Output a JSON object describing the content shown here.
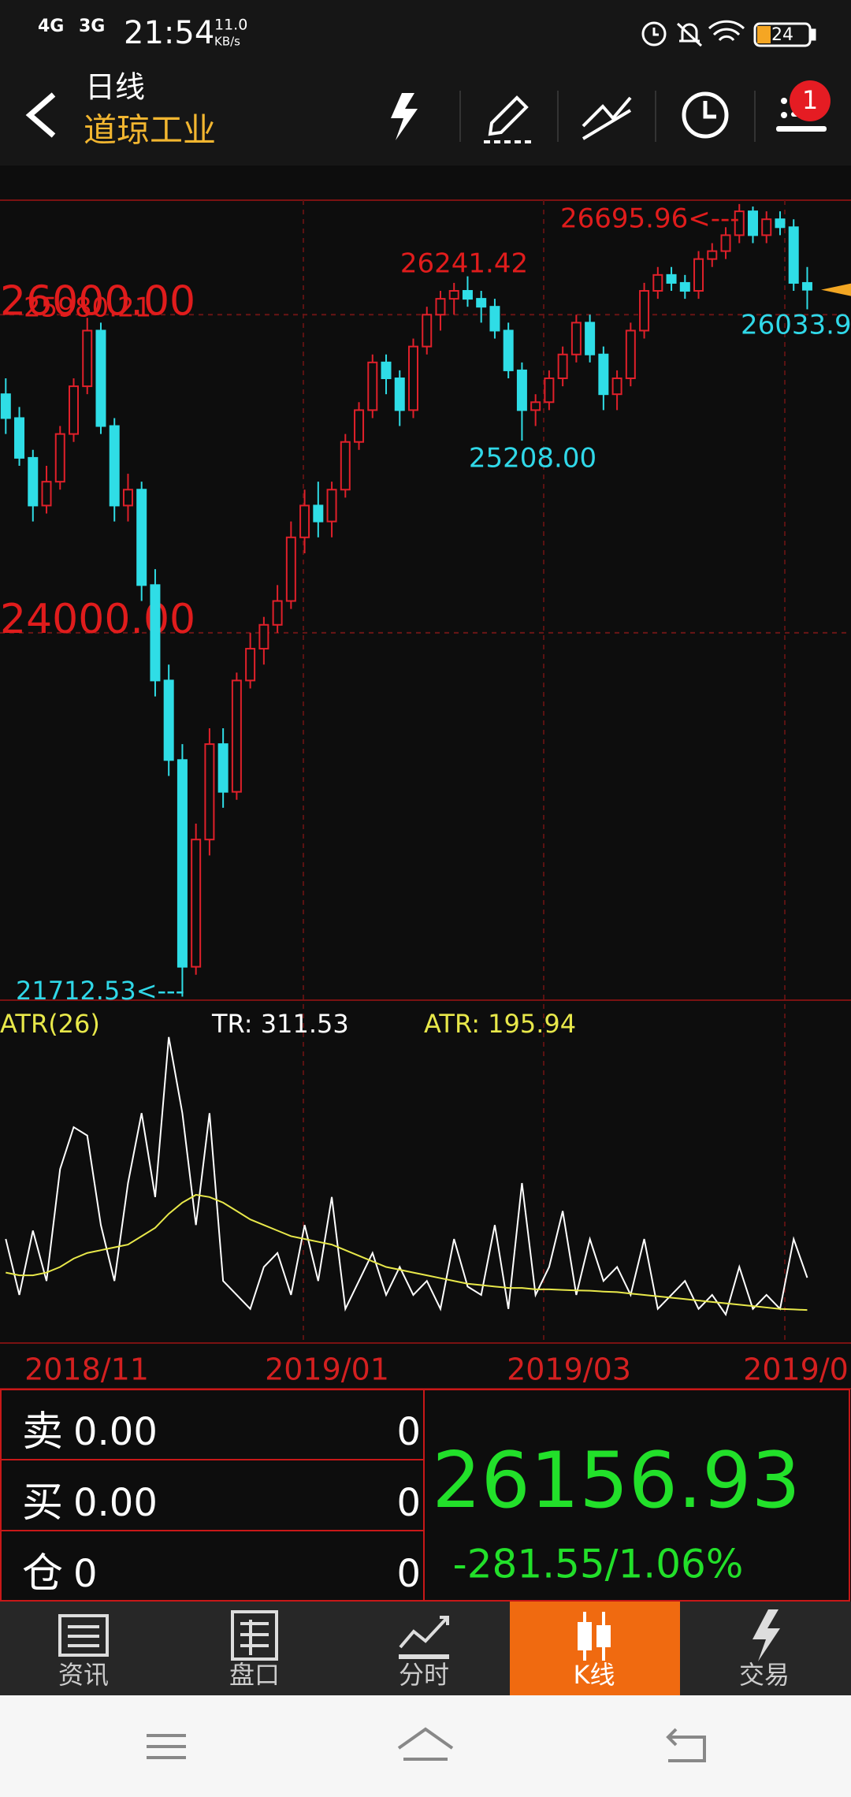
{
  "status_bar": {
    "network_1": "4G",
    "network_2": "3G",
    "time": "21:54",
    "speed": "11.0",
    "speed_unit": "KB/s",
    "battery": "24"
  },
  "header": {
    "period": "日线",
    "name": "道琼工业",
    "badge": "1"
  },
  "chart_data": {
    "type": "candlestick",
    "ylim": [
      21690,
      26720
    ],
    "yticks": [
      {
        "value": 26000,
        "label": "26000.00"
      },
      {
        "value": 24000,
        "label": "24000.00"
      }
    ],
    "grid": true,
    "up_color": "#e0202a",
    "down_color": "#2fdde6",
    "ohlc": [
      [
        25500,
        25600,
        25250,
        25350
      ],
      [
        25350,
        25420,
        25050,
        25100
      ],
      [
        25100,
        25150,
        24700,
        24800
      ],
      [
        24800,
        25050,
        24750,
        24950
      ],
      [
        24950,
        25300,
        24900,
        25250
      ],
      [
        25250,
        25600,
        25200,
        25550
      ],
      [
        25550,
        25980.21,
        25500,
        25900
      ],
      [
        25900,
        25950,
        25250,
        25300
      ],
      [
        25300,
        25350,
        24700,
        24800
      ],
      [
        24800,
        25000,
        24700,
        24900
      ],
      [
        24900,
        24950,
        24200,
        24300
      ],
      [
        24300,
        24400,
        23600,
        23700
      ],
      [
        23700,
        23800,
        23100,
        23200
      ],
      [
        23200,
        23300,
        21712.53,
        21900
      ],
      [
        21900,
        22800,
        21850,
        22700
      ],
      [
        22700,
        23400,
        22600,
        23300
      ],
      [
        23300,
        23400,
        22900,
        23000
      ],
      [
        23000,
        23750,
        22950,
        23700
      ],
      [
        23700,
        24000,
        23650,
        23900
      ],
      [
        23900,
        24100,
        23800,
        24050
      ],
      [
        24050,
        24300,
        24000,
        24200
      ],
      [
        24200,
        24700,
        24150,
        24600
      ],
      [
        24600,
        24900,
        24500,
        24800
      ],
      [
        24800,
        24950,
        24600,
        24700
      ],
      [
        24700,
        24950,
        24600,
        24900
      ],
      [
        24900,
        25250,
        24850,
        25200
      ],
      [
        25200,
        25450,
        25150,
        25400
      ],
      [
        25400,
        25750,
        25350,
        25700
      ],
      [
        25700,
        25750,
        25500,
        25600
      ],
      [
        25600,
        25650,
        25300,
        25400
      ],
      [
        25400,
        25850,
        25350,
        25800
      ],
      [
        25800,
        26050,
        25750,
        26000
      ],
      [
        26000,
        26150,
        25900,
        26100
      ],
      [
        26100,
        26200,
        26000,
        26150
      ],
      [
        26150,
        26241.42,
        26050,
        26100
      ],
      [
        26100,
        26150,
        25950,
        26050
      ],
      [
        26050,
        26100,
        25850,
        25900
      ],
      [
        25900,
        25950,
        25600,
        25650
      ],
      [
        25650,
        25700,
        25208,
        25400
      ],
      [
        25400,
        25500,
        25300,
        25450
      ],
      [
        25450,
        25650,
        25400,
        25600
      ],
      [
        25600,
        25800,
        25550,
        25750
      ],
      [
        25750,
        26000,
        25700,
        25950
      ],
      [
        25950,
        26000,
        25700,
        25750
      ],
      [
        25750,
        25800,
        25400,
        25500
      ],
      [
        25500,
        25650,
        25400,
        25600
      ],
      [
        25600,
        25950,
        25550,
        25900
      ],
      [
        25900,
        26200,
        25850,
        26150
      ],
      [
        26150,
        26300,
        26100,
        26250
      ],
      [
        26250,
        26300,
        26150,
        26200
      ],
      [
        26200,
        26250,
        26100,
        26150
      ],
      [
        26150,
        26400,
        26100,
        26350
      ],
      [
        26350,
        26450,
        26300,
        26400
      ],
      [
        26400,
        26550,
        26350,
        26500
      ],
      [
        26500,
        26695.96,
        26450,
        26650
      ],
      [
        26650,
        26680,
        26450,
        26500
      ],
      [
        26500,
        26650,
        26450,
        26600
      ],
      [
        26600,
        26650,
        26500,
        26550
      ],
      [
        26550,
        26600,
        26150,
        26200
      ],
      [
        26200,
        26300,
        26033.9,
        26156.93
      ]
    ],
    "annotations": [
      "25980.21",
      "26241.42",
      "26695.96<---",
      "25208.00",
      "21712.53<---",
      "26033.9"
    ],
    "x_labels": [
      "2018/11",
      "2019/01",
      "2019/03",
      "2019/0"
    ],
    "indicator": {
      "type": "line",
      "title": "ATR(26)",
      "ylim": [
        78,
        1304
      ],
      "series": [
        {
          "name": "TR: 311.53",
          "color": "#ffffff",
          "values": [
            450,
            250,
            480,
            300,
            700,
            850,
            820,
            500,
            300,
            650,
            900,
            600,
            1172,
            900,
            500,
            900,
            300,
            250,
            200,
            350,
            400,
            250,
            500,
            300,
            600,
            200,
            300,
            400,
            250,
            350,
            250,
            300,
            200,
            450,
            280,
            250,
            500,
            200,
            650,
            250,
            350,
            550,
            250,
            450,
            300,
            350,
            250,
            450,
            200,
            250,
            300,
            200,
            250,
            180,
            350,
            200,
            250,
            200,
            450,
            311.53
          ]
        },
        {
          "name": "ATR: 195.94",
          "color": "#e8e84a",
          "values": [
            330,
            320,
            320,
            330,
            350,
            380,
            400,
            410,
            420,
            430,
            460,
            490,
            540,
            580,
            608,
            600,
            580,
            550,
            520,
            500,
            480,
            460,
            450,
            440,
            430,
            410,
            390,
            370,
            350,
            340,
            330,
            320,
            310,
            300,
            290,
            285,
            280,
            275,
            275,
            270,
            270,
            268,
            266,
            265,
            262,
            260,
            255,
            250,
            245,
            240,
            235,
            230,
            225,
            220,
            215,
            210,
            205,
            200,
            198,
            195.94
          ]
        }
      ]
    }
  },
  "quote": {
    "rows": [
      {
        "label": "卖",
        "price": "0.00",
        "qty": "0"
      },
      {
        "label": "买",
        "price": "0.00",
        "qty": "0"
      },
      {
        "label": "仓",
        "price": "0",
        "qty": "0"
      }
    ],
    "price": "26156.93",
    "change": "-281.55/1.06%"
  },
  "tabs": [
    "资讯",
    "盘口",
    "分时",
    "K线",
    "交易"
  ]
}
